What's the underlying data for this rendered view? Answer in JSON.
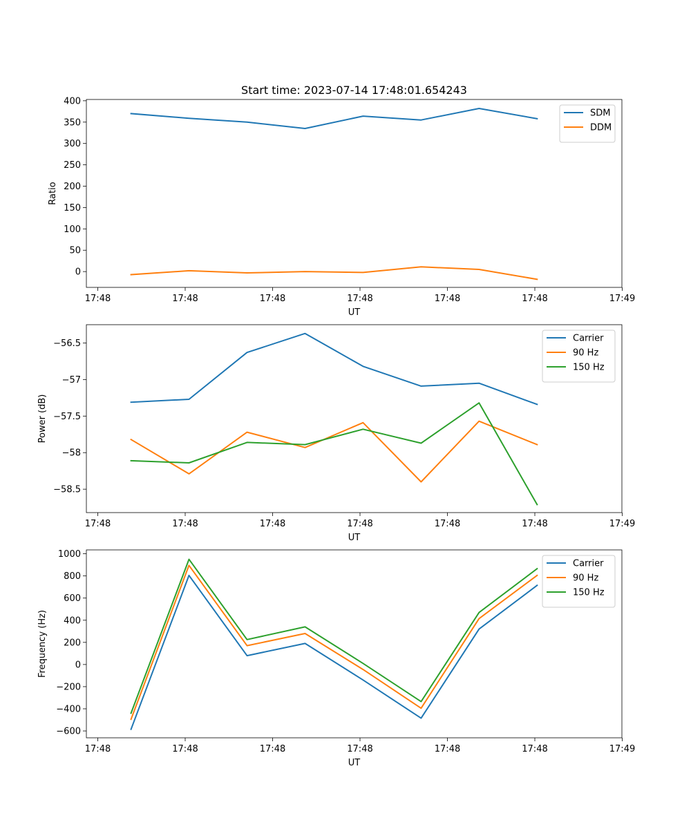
{
  "figure": {
    "title": "Start time: 2023-07-14 17:48:01.654243"
  },
  "chart_data": [
    {
      "type": "line",
      "title": "Start time: 2023-07-14 17:48:01.654243",
      "xlabel": "UT",
      "ylabel": "Ratio",
      "x_tick_labels": [
        "17:48",
        "17:48",
        "17:48",
        "17:48",
        "17:48",
        "17:48",
        "17:49"
      ],
      "xlim": [
        0,
        6
      ],
      "x": [
        0.5,
        1.15,
        1.8,
        2.45,
        3.1,
        3.75,
        4.4,
        5.05
      ],
      "ylim": [
        -37,
        403
      ],
      "y_ticks": [
        0,
        50,
        100,
        150,
        200,
        250,
        300,
        350,
        400
      ],
      "legend_position": "top-right",
      "series": [
        {
          "name": "SDM",
          "color": "#1f77b4",
          "values": [
            370,
            359,
            350,
            335,
            364,
            355,
            382,
            358
          ]
        },
        {
          "name": "DDM",
          "color": "#ff7f0e",
          "values": [
            -7,
            2,
            -3,
            0,
            -2,
            11,
            5,
            -18
          ]
        }
      ]
    },
    {
      "type": "line",
      "title": "",
      "xlabel": "UT",
      "ylabel": "Power (dB)",
      "x_tick_labels": [
        "17:48",
        "17:48",
        "17:48",
        "17:48",
        "17:48",
        "17:48",
        "17:49"
      ],
      "xlim": [
        0,
        6
      ],
      "x": [
        0.5,
        1.15,
        1.8,
        2.45,
        3.1,
        3.75,
        4.4,
        5.05
      ],
      "ylim": [
        -58.82,
        -56.25
      ],
      "y_ticks": [
        -58.5,
        -58.0,
        -57.5,
        -57.0,
        -56.5
      ],
      "legend_position": "top-right",
      "series": [
        {
          "name": "Carrier",
          "color": "#1f77b4",
          "values": [
            -57.31,
            -57.27,
            -56.63,
            -56.37,
            -56.82,
            -57.09,
            -57.05,
            -57.34
          ]
        },
        {
          "name": "90 Hz",
          "color": "#ff7f0e",
          "values": [
            -57.82,
            -58.29,
            -57.72,
            -57.93,
            -57.59,
            -58.4,
            -57.57,
            -57.89
          ]
        },
        {
          "name": "150 Hz",
          "color": "#2ca02c",
          "values": [
            -58.11,
            -58.14,
            -57.86,
            -57.89,
            -57.68,
            -57.87,
            -57.32,
            -58.71
          ]
        }
      ]
    },
    {
      "type": "line",
      "title": "",
      "xlabel": "UT",
      "ylabel": "Frequency (Hz)",
      "x_tick_labels": [
        "17:48",
        "17:48",
        "17:48",
        "17:48",
        "17:48",
        "17:48",
        "17:49"
      ],
      "xlim": [
        0,
        6
      ],
      "x": [
        0.5,
        1.15,
        1.8,
        2.45,
        3.1,
        3.75,
        4.4,
        5.05
      ],
      "ylim": [
        -662,
        1035
      ],
      "y_ticks": [
        -600,
        -400,
        -200,
        0,
        200,
        400,
        600,
        800,
        1000
      ],
      "legend_position": "top-right",
      "series": [
        {
          "name": "Carrier",
          "color": "#1f77b4",
          "values": [
            -585,
            805,
            80,
            190,
            -140,
            -485,
            320,
            715
          ]
        },
        {
          "name": "90 Hz",
          "color": "#ff7f0e",
          "values": [
            -495,
            895,
            170,
            280,
            -45,
            -395,
            415,
            805
          ]
        },
        {
          "name": "150 Hz",
          "color": "#2ca02c",
          "values": [
            -440,
            950,
            225,
            340,
            10,
            -335,
            470,
            865
          ]
        }
      ]
    }
  ]
}
